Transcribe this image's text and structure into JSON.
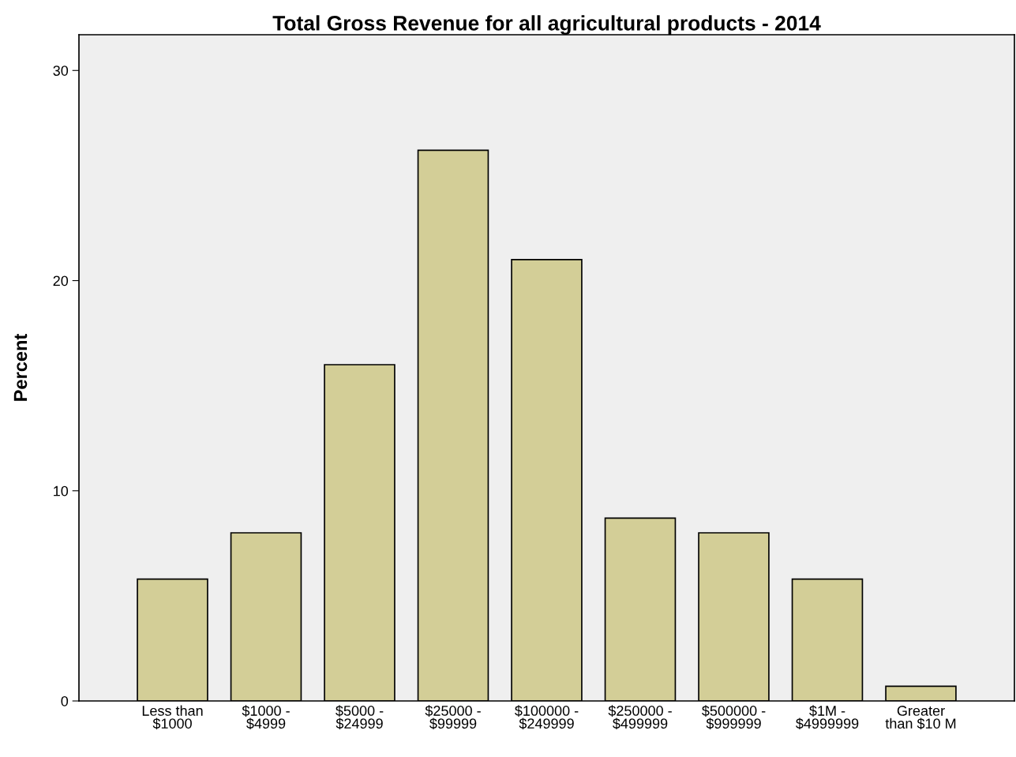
{
  "chart_data": {
    "type": "bar",
    "title": "Total Gross Revenue for all agricultural products - 2014",
    "ylabel": "Percent",
    "categories": [
      "Less than\n$1000",
      "$1000 -\n$4999",
      "$5000 -\n$24999",
      "$25000 -\n$99999",
      "$100000 -\n$249999",
      "$250000 -\n$499999",
      "$500000 -\n$999999",
      "$1M -\n$4999999",
      "Greater\nthan $10 M"
    ],
    "values": [
      5.8,
      8.0,
      16.0,
      26.2,
      21.0,
      8.7,
      8.0,
      5.8,
      0.7
    ],
    "color": "#d3ce97",
    "ylim": [
      0,
      31.7
    ],
    "yticks": [
      0,
      10,
      20,
      30
    ],
    "grid": false,
    "legend": false
  }
}
